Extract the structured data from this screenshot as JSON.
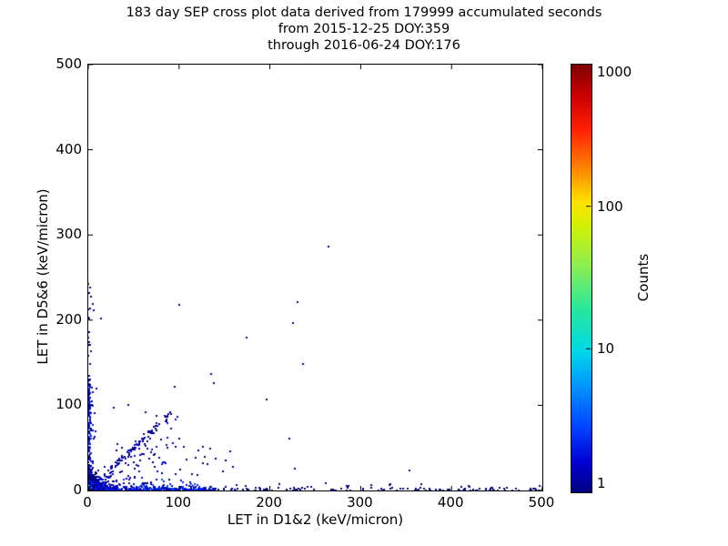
{
  "figure": {
    "title_lines": [
      "183 day SEP cross plot data derived from 179999 accumulated seconds",
      "from 2015-12-25 DOY:359",
      "through 2016-06-24 DOY:176"
    ],
    "background_color": "#ffffff",
    "axis_color": "#000000"
  },
  "chart_data": {
    "type": "scatter",
    "title": "183 day SEP cross plot data derived from 179999 accumulated seconds from 2015-12-25 DOY:359 through 2016-06-24 DOY:176",
    "xlabel": "LET in D1&2 (keV/micron)",
    "ylabel": "LET in D5&6 (keV/micron)",
    "xlim": [
      0,
      500
    ],
    "ylim": [
      0,
      500
    ],
    "x_ticks": [
      0,
      100,
      200,
      300,
      400,
      500
    ],
    "y_ticks": [
      0,
      100,
      200,
      300,
      400,
      500
    ],
    "grid": false,
    "tick_direction": "in",
    "colorbar": {
      "label": "Counts",
      "scale": "log",
      "range": [
        1,
        1000
      ],
      "ticks": [
        1,
        10,
        100,
        1000
      ],
      "colormap": "jet"
    },
    "point_color_low": "#000080",
    "seed": 1337,
    "outlier_points": [
      [
        265,
        286
      ],
      [
        230,
        221
      ],
      [
        225,
        197
      ],
      [
        236,
        148
      ],
      [
        221,
        61
      ],
      [
        227,
        26
      ],
      [
        174,
        179
      ],
      [
        196,
        107
      ],
      [
        100,
        218
      ],
      [
        135,
        137
      ],
      [
        138,
        126
      ],
      [
        95,
        122
      ],
      [
        86,
        83
      ],
      [
        87,
        50
      ],
      [
        44,
        100
      ],
      [
        28,
        97
      ],
      [
        354,
        24
      ],
      [
        461,
        3
      ],
      [
        497,
        5
      ],
      [
        490,
        2
      ],
      [
        0,
        243
      ],
      [
        2,
        238
      ],
      [
        1,
        232
      ],
      [
        3,
        228
      ],
      [
        0,
        213
      ],
      [
        6,
        212
      ],
      [
        0,
        203
      ],
      [
        14,
        202
      ],
      [
        0,
        158
      ],
      [
        9,
        120
      ],
      [
        120,
        18
      ],
      [
        148,
        22
      ],
      [
        163,
        6
      ],
      [
        210,
        7
      ],
      [
        241,
        4
      ],
      [
        262,
        9
      ],
      [
        287,
        5
      ],
      [
        312,
        3
      ],
      [
        333,
        7
      ],
      [
        376,
        2
      ],
      [
        420,
        4
      ],
      [
        443,
        2
      ],
      [
        63,
        92
      ],
      [
        75,
        88
      ],
      [
        52,
        58
      ]
    ],
    "clusters": [
      {
        "name": "origin-blob",
        "type": "blob",
        "n": 900,
        "x_scale": 5,
        "y_scale": 5,
        "count_model": "radial",
        "peak_count": 60,
        "count_decay": 3
      },
      {
        "name": "bottom-band-dense",
        "type": "hband",
        "n": 420,
        "x_range": [
          0,
          140
        ],
        "y_scale": 1.8,
        "counts": [
          1,
          4
        ]
      },
      {
        "name": "bottom-band-sparse",
        "type": "hband",
        "n": 130,
        "x_range": [
          140,
          500
        ],
        "y_scale": 1.6,
        "counts": [
          1,
          1
        ]
      },
      {
        "name": "left-band",
        "type": "vband",
        "n": 170,
        "y_range": [
          0,
          130
        ],
        "x_scale": 1.5,
        "counts": [
          1,
          3
        ]
      },
      {
        "name": "left-band-upper",
        "type": "vband",
        "n": 12,
        "y_range": [
          130,
          250
        ],
        "x_scale": 1.2,
        "counts": [
          1,
          1
        ]
      },
      {
        "name": "diagonal-band",
        "type": "diag",
        "n": 90,
        "t_range": [
          4,
          78
        ],
        "jitter": 2.5,
        "counts": [
          1,
          2
        ]
      },
      {
        "name": "diagonal-tail",
        "type": "diag",
        "n": 10,
        "t_range": [
          78,
          95
        ],
        "jitter": 3,
        "counts": [
          1,
          1
        ]
      },
      {
        "name": "origin-triangle",
        "type": "tri",
        "n": 170,
        "x_range": [
          0,
          105
        ],
        "slope": 0.95,
        "counts": [
          1,
          2
        ]
      },
      {
        "name": "mid-scatter",
        "type": "box",
        "n": 30,
        "x_range": [
          15,
          165
        ],
        "y_range": [
          8,
          55
        ],
        "counts": [
          1,
          1
        ]
      }
    ]
  }
}
